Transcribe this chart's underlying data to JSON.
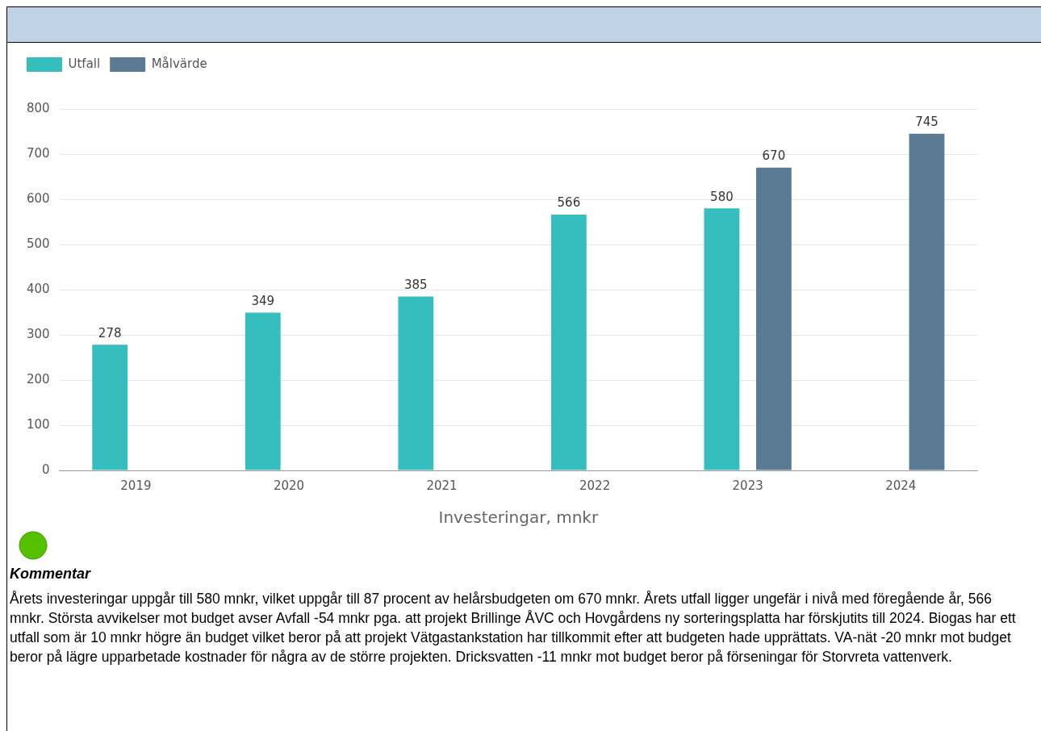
{
  "chart_data": {
    "type": "bar",
    "xlabel": "Investeringar, mnkr",
    "categories": [
      "2019",
      "2020",
      "2021",
      "2022",
      "2023",
      "2024"
    ],
    "series": [
      {
        "name": "Utfall",
        "color": "#36bdbd",
        "values": [
          278,
          349,
          385,
          566,
          580,
          null
        ]
      },
      {
        "name": "Målvärde",
        "color": "#5b7a93",
        "values": [
          null,
          null,
          null,
          null,
          670,
          745
        ]
      }
    ],
    "ylim": [
      0,
      800
    ],
    "yticks": [
      0,
      100,
      200,
      300,
      400,
      500,
      600,
      700,
      800
    ],
    "grid": "y",
    "legend": "top left",
    "data_labels": true,
    "annotations": [
      "Kommentar",
      "Årets investeringar uppgår till 580 mnkr, vilket uppgår till 87 procent av helårsbudgeten om 670 mnkr. Årets utfall ligger ungefär i nivå med föregående år, 566 mnkr. Största avvikelser mot budget avser Avfall -54 mnkr pga. att projekt Brillinge ÅVC och Hovgårdens ny sorteringsplatta har förskjutits till 2024. Biogas har ett utfall som är 10 mnkr högre än budget vilket beror på att projekt Vätgastankstation har tillkommit efter att budgeten hade upprättats. VA-nät -20 mnkr mot budget beror på lägre upparbetade kostnader för några av de större projekten. Dricksvatten -11 mnkr mot budget beror på förseningar för Storvreta vattenverk."
    ]
  }
}
